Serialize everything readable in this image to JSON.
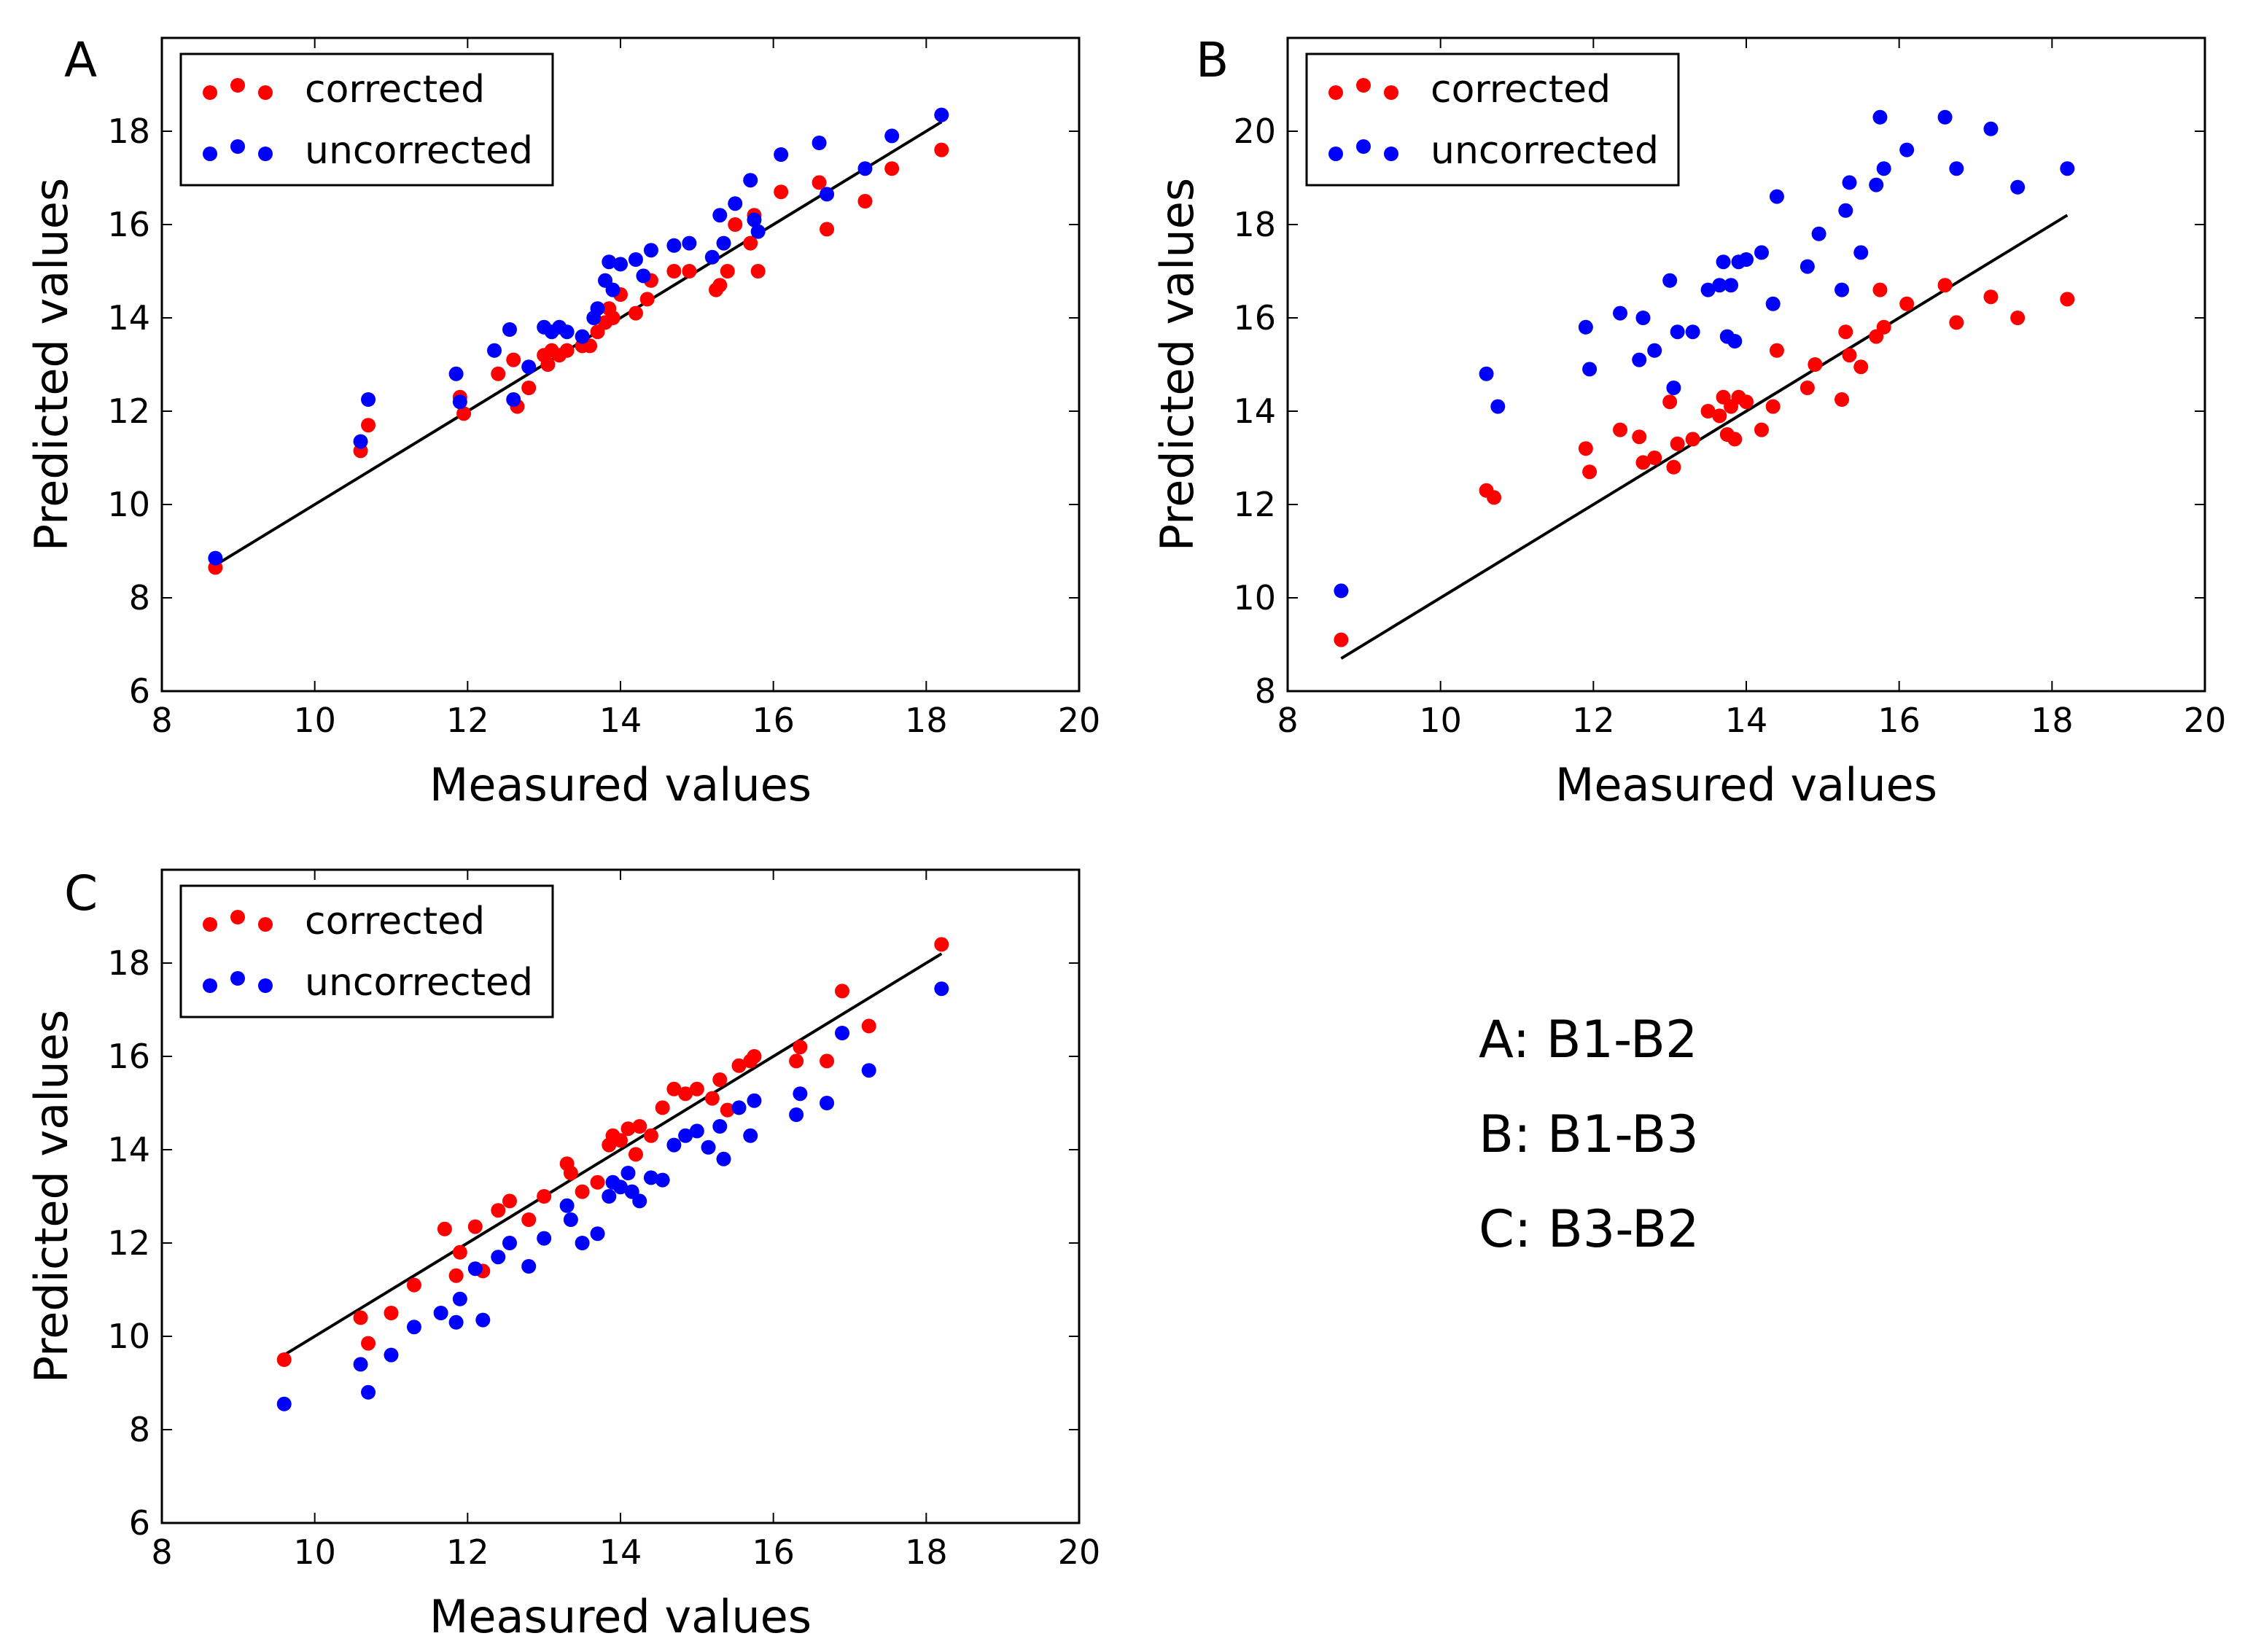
{
  "figure": {
    "captions": [
      "A: B1-B2",
      "B: B1-B3",
      "C: B3-B2"
    ]
  },
  "colors": {
    "corrected": "#ff0000",
    "uncorrected": "#0000ff",
    "fit_line": "#000000"
  },
  "chart_data": [
    {
      "panel": "A",
      "type": "scatter",
      "xlabel": "Measured values",
      "ylabel": "Predicted values",
      "xlim": [
        8,
        20
      ],
      "ylim": [
        6,
        20
      ],
      "xticks": [
        8,
        10,
        12,
        14,
        16,
        18,
        20
      ],
      "yticks": [
        6,
        8,
        10,
        12,
        14,
        16,
        18
      ],
      "legend": {
        "position": "top-left",
        "entries": [
          "corrected",
          "uncorrected"
        ]
      },
      "fit_line": {
        "x": [
          8.7,
          18.2
        ],
        "y": [
          8.7,
          18.2
        ]
      },
      "series": [
        {
          "name": "corrected",
          "color": "#ff0000",
          "x": [
            8.7,
            10.6,
            10.7,
            11.9,
            11.95,
            12.4,
            12.6,
            12.65,
            12.8,
            13.0,
            13.05,
            13.1,
            13.2,
            13.3,
            13.5,
            13.6,
            13.7,
            13.8,
            13.85,
            13.9,
            14.0,
            14.2,
            14.35,
            14.4,
            14.7,
            14.9,
            15.25,
            15.3,
            15.4,
            15.5,
            15.7,
            15.75,
            15.8,
            16.1,
            16.6,
            16.7,
            17.2,
            17.55,
            18.2
          ],
          "y": [
            8.65,
            11.15,
            11.7,
            12.3,
            11.95,
            12.8,
            13.1,
            12.1,
            12.5,
            13.2,
            13.0,
            13.3,
            13.2,
            13.3,
            13.4,
            13.4,
            13.7,
            13.9,
            14.2,
            14.0,
            14.5,
            14.1,
            14.4,
            14.8,
            15.0,
            15.0,
            14.6,
            14.7,
            15.0,
            16.0,
            15.6,
            16.2,
            15.0,
            16.7,
            16.9,
            15.9,
            16.5,
            17.2,
            17.6
          ]
        },
        {
          "name": "uncorrected",
          "color": "#0000ff",
          "x": [
            8.7,
            10.6,
            10.7,
            11.85,
            11.9,
            12.35,
            12.55,
            12.6,
            12.8,
            13.0,
            13.1,
            13.2,
            13.3,
            13.5,
            13.65,
            13.7,
            13.8,
            13.85,
            13.9,
            14.0,
            14.2,
            14.3,
            14.4,
            14.7,
            14.9,
            15.2,
            15.3,
            15.35,
            15.5,
            15.7,
            15.75,
            15.8,
            16.1,
            16.6,
            16.7,
            17.2,
            17.55,
            18.2
          ],
          "y": [
            8.85,
            11.35,
            12.25,
            12.8,
            12.2,
            13.3,
            13.75,
            12.25,
            12.95,
            13.8,
            13.7,
            13.8,
            13.7,
            13.6,
            14.0,
            14.2,
            14.8,
            15.2,
            14.6,
            15.15,
            15.25,
            14.9,
            15.45,
            15.55,
            15.6,
            15.3,
            16.2,
            15.6,
            16.45,
            16.95,
            16.1,
            15.85,
            17.5,
            17.75,
            16.65,
            17.2,
            17.9,
            18.35
          ]
        }
      ]
    },
    {
      "panel": "B",
      "type": "scatter",
      "xlabel": "Measured values",
      "ylabel": "Predicted values",
      "xlim": [
        8,
        20
      ],
      "ylim": [
        8,
        22
      ],
      "xticks": [
        8,
        10,
        12,
        14,
        16,
        18,
        20
      ],
      "yticks": [
        8,
        10,
        12,
        14,
        16,
        18,
        20
      ],
      "legend": {
        "position": "top-left",
        "entries": [
          "corrected",
          "uncorrected"
        ]
      },
      "fit_line": {
        "x": [
          8.7,
          18.2
        ],
        "y": [
          8.7,
          18.2
        ]
      },
      "series": [
        {
          "name": "corrected",
          "color": "#ff0000",
          "x": [
            8.7,
            10.6,
            10.7,
            11.9,
            11.95,
            12.35,
            12.6,
            12.65,
            12.8,
            13.0,
            13.05,
            13.1,
            13.3,
            13.5,
            13.65,
            13.7,
            13.75,
            13.8,
            13.85,
            13.9,
            14.0,
            14.2,
            14.35,
            14.4,
            14.8,
            14.9,
            15.25,
            15.3,
            15.35,
            15.5,
            15.7,
            15.75,
            15.8,
            16.1,
            16.6,
            16.75,
            17.2,
            17.55,
            18.2
          ],
          "y": [
            9.1,
            12.3,
            12.15,
            13.2,
            12.7,
            13.6,
            13.45,
            12.9,
            13.0,
            14.2,
            12.8,
            13.3,
            13.4,
            14.0,
            13.9,
            14.3,
            13.5,
            14.1,
            13.4,
            14.3,
            14.2,
            13.6,
            14.1,
            15.3,
            14.5,
            15.0,
            14.25,
            15.7,
            15.2,
            14.95,
            15.6,
            16.6,
            15.8,
            16.3,
            16.7,
            15.9,
            16.45,
            16.0,
            16.4
          ]
        },
        {
          "name": "uncorrected",
          "color": "#0000ff",
          "x": [
            8.7,
            10.6,
            10.75,
            11.9,
            11.95,
            12.35,
            12.6,
            12.65,
            12.8,
            13.0,
            13.05,
            13.1,
            13.3,
            13.5,
            13.65,
            13.7,
            13.75,
            13.8,
            13.85,
            13.9,
            14.0,
            14.2,
            14.35,
            14.4,
            14.8,
            14.95,
            15.25,
            15.3,
            15.35,
            15.5,
            15.7,
            15.75,
            15.8,
            16.1,
            16.6,
            16.75,
            17.2,
            17.55,
            18.2
          ],
          "y": [
            10.15,
            14.8,
            14.1,
            15.8,
            14.9,
            16.1,
            15.1,
            16.0,
            15.3,
            16.8,
            14.5,
            15.7,
            15.7,
            16.6,
            16.7,
            17.2,
            15.6,
            16.7,
            15.5,
            17.2,
            17.25,
            17.4,
            16.3,
            18.6,
            17.1,
            17.8,
            16.6,
            18.3,
            18.9,
            17.4,
            18.85,
            20.3,
            19.2,
            19.6,
            20.3,
            19.2,
            20.05,
            18.8,
            19.2
          ]
        }
      ]
    },
    {
      "panel": "C",
      "type": "scatter",
      "xlabel": "Measured values",
      "ylabel": "Predicted values",
      "xlim": [
        8,
        20
      ],
      "ylim": [
        6,
        20
      ],
      "xticks": [
        8,
        10,
        12,
        14,
        16,
        18,
        20
      ],
      "yticks": [
        6,
        8,
        10,
        12,
        14,
        16,
        18
      ],
      "legend": {
        "position": "top-left",
        "entries": [
          "corrected",
          "uncorrected"
        ]
      },
      "fit_line": {
        "x": [
          9.6,
          18.2
        ],
        "y": [
          9.6,
          18.2
        ]
      },
      "series": [
        {
          "name": "corrected",
          "color": "#ff0000",
          "x": [
            9.6,
            10.6,
            10.7,
            11.0,
            11.3,
            11.7,
            11.85,
            11.9,
            12.1,
            12.2,
            12.4,
            12.55,
            12.8,
            13.0,
            13.3,
            13.35,
            13.5,
            13.7,
            13.85,
            13.9,
            14.0,
            14.1,
            14.2,
            14.25,
            14.4,
            14.55,
            14.7,
            14.85,
            15.0,
            15.2,
            15.3,
            15.4,
            15.55,
            15.7,
            15.75,
            16.3,
            16.35,
            16.7,
            16.9,
            17.25,
            18.2
          ],
          "y": [
            9.5,
            10.4,
            9.85,
            10.5,
            11.1,
            12.3,
            11.3,
            11.8,
            12.35,
            11.4,
            12.7,
            12.9,
            12.5,
            13.0,
            13.7,
            13.5,
            13.1,
            13.3,
            14.1,
            14.3,
            14.2,
            14.45,
            13.9,
            14.5,
            14.3,
            14.9,
            15.3,
            15.2,
            15.3,
            15.1,
            15.5,
            14.85,
            15.8,
            15.9,
            16.0,
            15.9,
            16.2,
            15.9,
            17.4,
            16.65,
            18.4
          ]
        },
        {
          "name": "uncorrected",
          "color": "#0000ff",
          "x": [
            9.6,
            10.6,
            10.7,
            11.0,
            11.3,
            11.65,
            11.85,
            11.9,
            12.1,
            12.2,
            12.4,
            12.55,
            12.8,
            13.0,
            13.3,
            13.35,
            13.5,
            13.7,
            13.85,
            13.9,
            14.0,
            14.1,
            14.15,
            14.25,
            14.4,
            14.55,
            14.7,
            14.85,
            15.0,
            15.15,
            15.3,
            15.35,
            15.55,
            15.7,
            15.75,
            16.3,
            16.35,
            16.7,
            16.9,
            17.25,
            18.2
          ],
          "y": [
            8.55,
            9.4,
            8.8,
            9.6,
            10.2,
            10.5,
            10.3,
            10.8,
            11.45,
            10.35,
            11.7,
            12.0,
            11.5,
            12.1,
            12.8,
            12.5,
            12.0,
            12.2,
            13.0,
            13.3,
            13.2,
            13.5,
            13.1,
            12.9,
            13.4,
            13.35,
            14.1,
            14.3,
            14.4,
            14.05,
            14.5,
            13.8,
            14.9,
            14.3,
            15.05,
            14.75,
            15.2,
            15.0,
            16.5,
            15.7,
            17.45
          ]
        }
      ]
    }
  ]
}
